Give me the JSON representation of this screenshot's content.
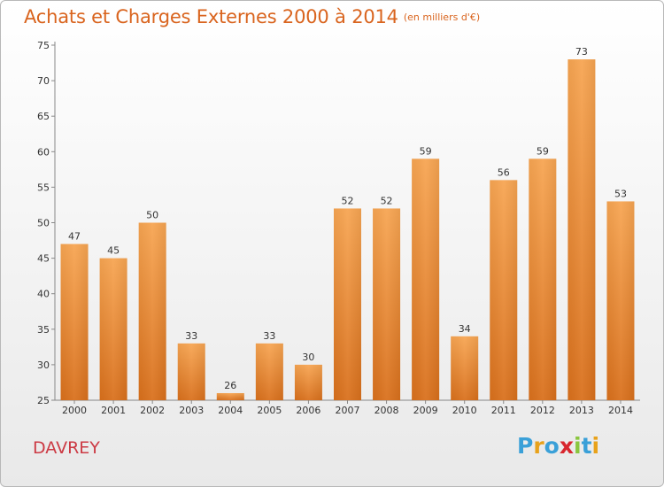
{
  "header": {
    "title": "Achats et Charges Externes 2000 à 2014",
    "subtitle": "(en milliers d'€)"
  },
  "footer": {
    "city": "DAVREY",
    "logo_letters": [
      "P",
      "r",
      "o",
      "x",
      "i",
      "t",
      "i"
    ],
    "logo_colors": [
      "#3aa0d8",
      "#e8a21b",
      "#3aa0d8",
      "#d8262e",
      "#8ac63f",
      "#3aa0d8",
      "#e8a21b"
    ]
  },
  "chart_data": {
    "type": "bar",
    "title": "Achats et Charges Externes 2000 à 2014",
    "subtitle": "(en milliers d'€)",
    "categories": [
      "2000",
      "2001",
      "2002",
      "2003",
      "2004",
      "2005",
      "2006",
      "2007",
      "2008",
      "2009",
      "2010",
      "2011",
      "2012",
      "2013",
      "2014"
    ],
    "values": [
      47,
      45,
      50,
      33,
      26,
      33,
      30,
      52,
      52,
      59,
      34,
      56,
      59,
      73,
      53
    ],
    "ylim": [
      25,
      75
    ],
    "yticks": [
      25,
      30,
      35,
      40,
      45,
      50,
      55,
      60,
      65,
      70,
      75
    ],
    "grid": false,
    "bar_color_top": "#f7a552",
    "bar_color_bottom": "#d9701c"
  }
}
